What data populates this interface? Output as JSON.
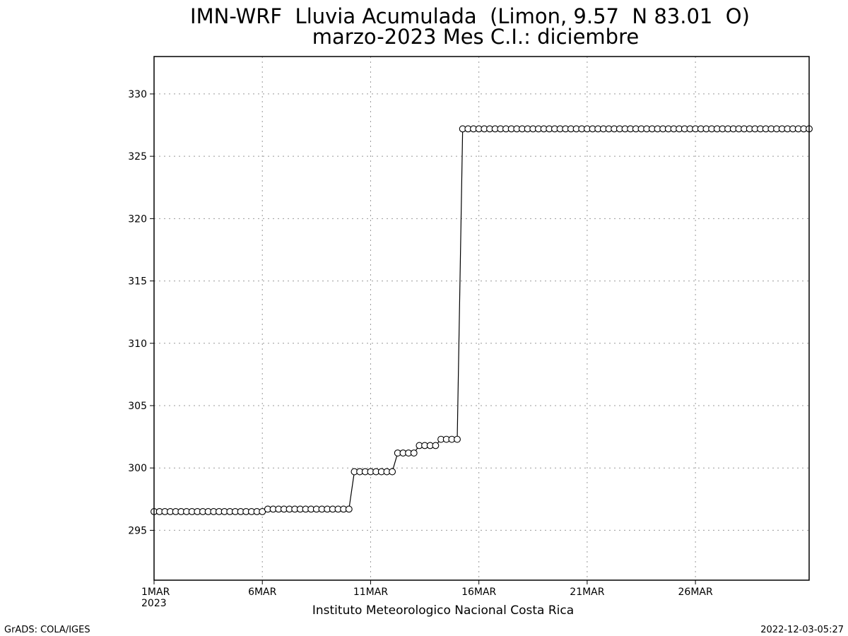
{
  "chart_data": {
    "type": "line",
    "title": "IMN-WRF  Lluvia Acumulada  (Limon, 9.57  N 83.01  O)",
    "subtitle": "marzo-2023 Mes C.I.: diciembre",
    "xlabel": "Instituto Meteorologico Nacional Costa Rica",
    "ylabel": "",
    "x_unit": "day of March 2023",
    "xlim": [
      1,
      31.25
    ],
    "ylim": [
      291,
      333
    ],
    "x_ticks": [
      {
        "value": 1,
        "label": "1MAR"
      },
      {
        "value": 6,
        "label": "6MAR"
      },
      {
        "value": 11,
        "label": "11MAR"
      },
      {
        "value": 16,
        "label": "16MAR"
      },
      {
        "value": 21,
        "label": "21MAR"
      },
      {
        "value": 26,
        "label": "26MAR"
      }
    ],
    "x_year_label": "2023",
    "y_ticks": [
      295,
      300,
      305,
      310,
      315,
      320,
      325,
      330
    ],
    "grid": true,
    "series": [
      {
        "segments": [
          {
            "from_day": 1.0,
            "to_day": 6.0,
            "value": 296.5
          },
          {
            "from_day": 6.25,
            "to_day": 10.0,
            "value": 296.7
          },
          {
            "from_day": 10.25,
            "to_day": 12.0,
            "value": 299.7
          },
          {
            "from_day": 12.25,
            "to_day": 13.0,
            "value": 301.2
          },
          {
            "from_day": 13.25,
            "to_day": 14.0,
            "value": 301.8
          },
          {
            "from_day": 14.25,
            "to_day": 15.0,
            "value": 302.3
          },
          {
            "from_day": 15.25,
            "to_day": 31.25,
            "value": 327.2
          }
        ],
        "step_days": 0.25,
        "marker": "circle",
        "color": "#000000"
      }
    ]
  },
  "footer": {
    "left": "GrADS: COLA/IGES",
    "right": "2022-12-03-05:27"
  }
}
